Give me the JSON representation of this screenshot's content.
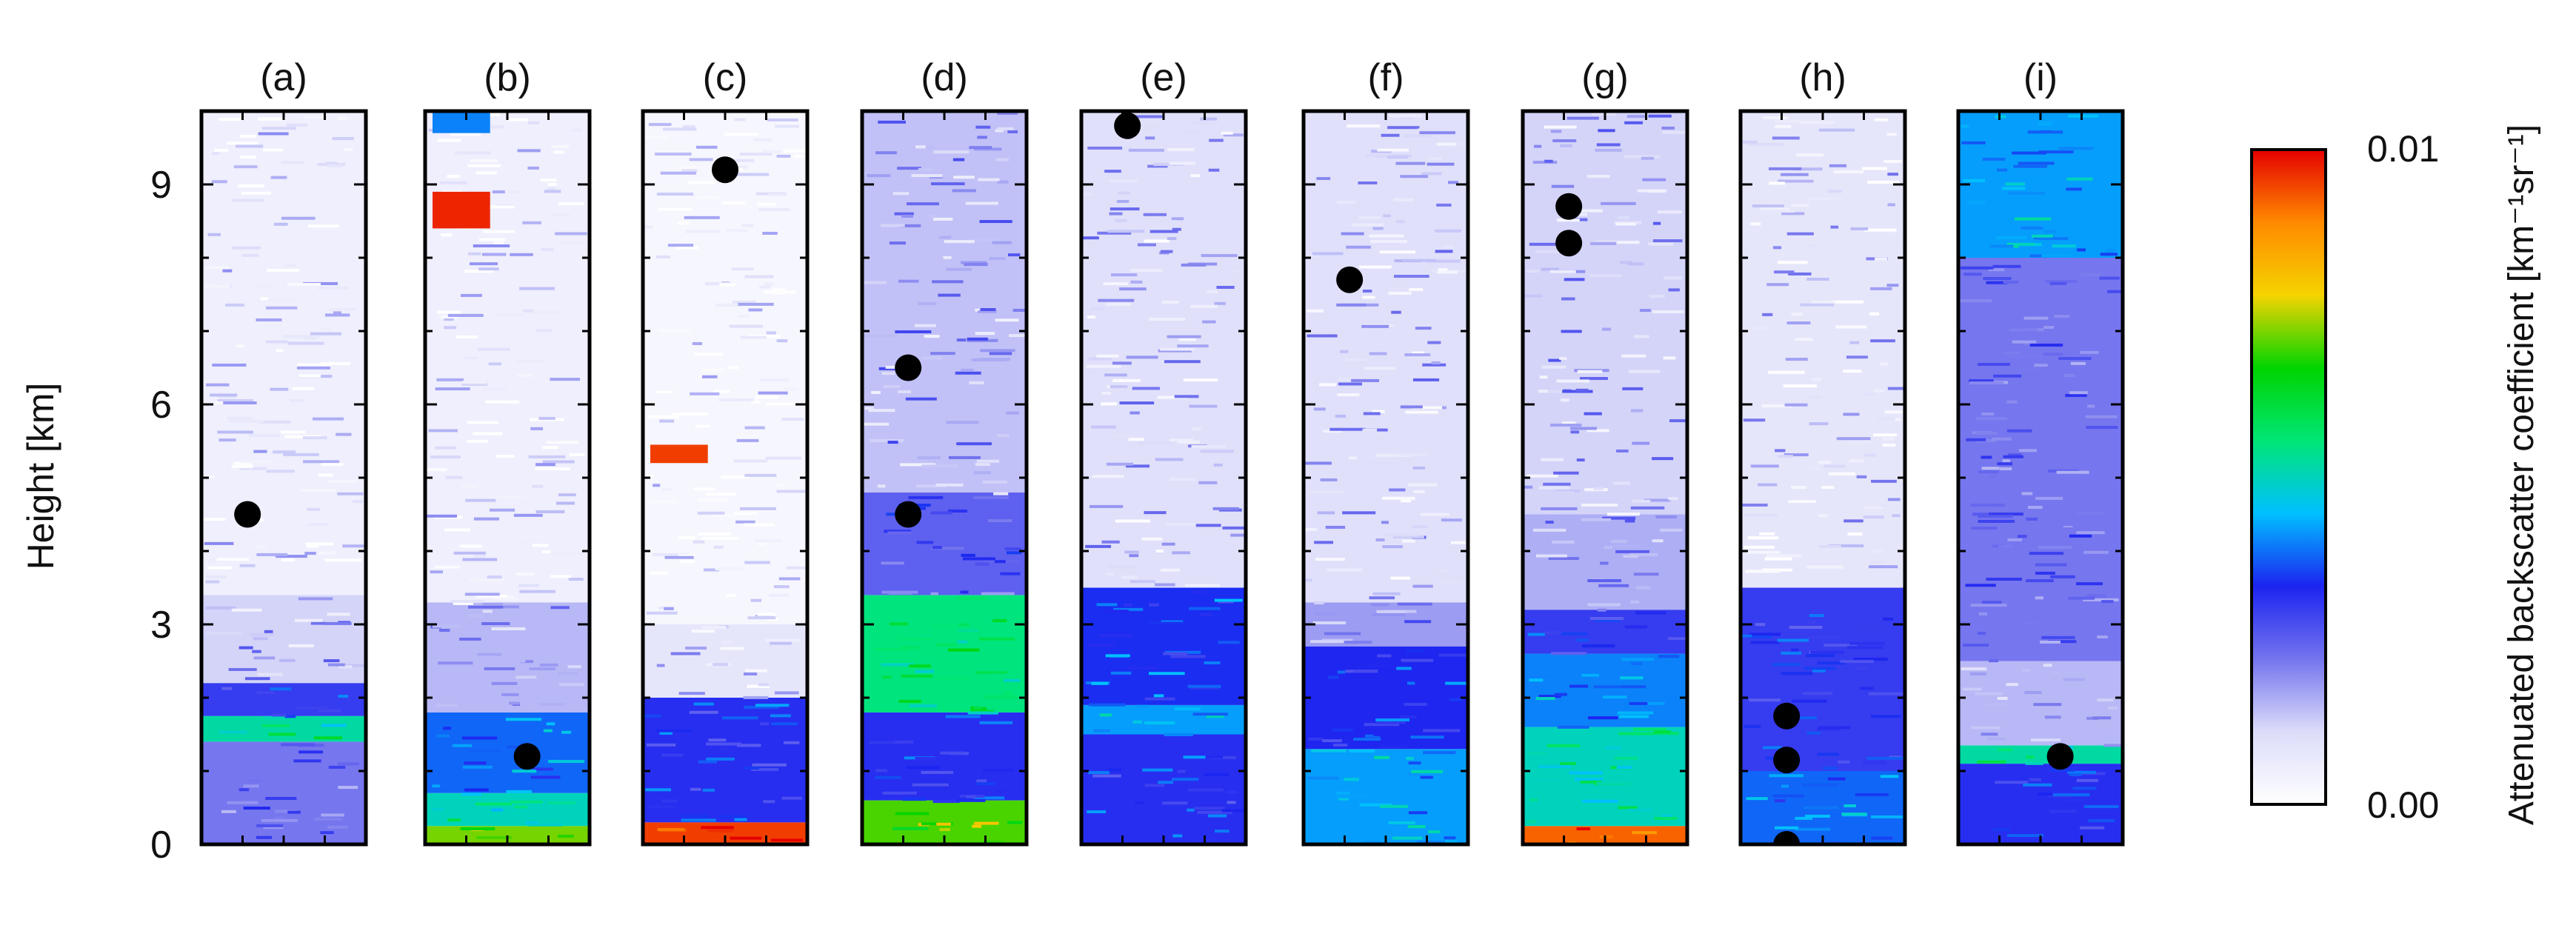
{
  "chart_data": {
    "type": "heatmap",
    "ylabel": "Height [km]",
    "ylim": [
      0,
      10
    ],
    "yticks": [
      "0",
      "3",
      "6",
      "9"
    ],
    "colorbar": {
      "label": "Attenuated backscatter coefficient [km⁻¹sr⁻¹]",
      "min_label": "0.00",
      "max_label": "0.01",
      "range": [
        0.0,
        0.01
      ],
      "colors": [
        "#ffffff",
        "#dcdcfa",
        "#7474ee",
        "#1c24f0",
        "#00c0ff",
        "#00e676",
        "#00d400",
        "#f5d300",
        "#ff8a00",
        "#e50000"
      ]
    },
    "panels": [
      {
        "label": "(a)",
        "markers": [
          4.5
        ],
        "layers": [
          {
            "bottom": 0.0,
            "top": 1.4,
            "level": 0.22
          },
          {
            "bottom": 1.4,
            "top": 1.75,
            "level": 0.52
          },
          {
            "bottom": 1.75,
            "top": 2.2,
            "level": 0.3
          },
          {
            "bottom": 2.2,
            "top": 3.4,
            "level": 0.12
          },
          {
            "bottom": 3.4,
            "top": 10.0,
            "level": 0.05
          }
        ]
      },
      {
        "label": "(b)",
        "markers": [
          1.2
        ],
        "layers": [
          {
            "bottom": 0.0,
            "top": 0.25,
            "level": 0.72
          },
          {
            "bottom": 0.25,
            "top": 0.7,
            "level": 0.5
          },
          {
            "bottom": 0.7,
            "top": 1.8,
            "level": 0.38
          },
          {
            "bottom": 1.8,
            "top": 3.3,
            "level": 0.15
          },
          {
            "bottom": 3.3,
            "top": 10.0,
            "level": 0.05
          }
        ],
        "features": [
          {
            "bottom": 8.4,
            "top": 8.9,
            "level": 0.97
          },
          {
            "bottom": 9.7,
            "top": 10.0,
            "level": 0.4
          }
        ]
      },
      {
        "label": "(c)",
        "markers": [
          9.2
        ],
        "layers": [
          {
            "bottom": 0.0,
            "top": 0.3,
            "level": 0.95
          },
          {
            "bottom": 0.3,
            "top": 2.0,
            "level": 0.32
          },
          {
            "bottom": 2.0,
            "top": 3.0,
            "level": 0.08
          },
          {
            "bottom": 3.0,
            "top": 10.0,
            "level": 0.03
          }
        ],
        "features": [
          {
            "bottom": 5.2,
            "top": 5.45,
            "level": 0.95
          }
        ]
      },
      {
        "label": "(d)",
        "markers": [
          6.5,
          4.5
        ],
        "layers": [
          {
            "bottom": 0.0,
            "top": 0.6,
            "level": 0.7
          },
          {
            "bottom": 0.6,
            "top": 1.8,
            "level": 0.32
          },
          {
            "bottom": 1.8,
            "top": 3.4,
            "level": 0.55
          },
          {
            "bottom": 3.4,
            "top": 4.8,
            "level": 0.25
          },
          {
            "bottom": 4.8,
            "top": 10.0,
            "level": 0.14
          }
        ]
      },
      {
        "label": "(e)",
        "markers": [
          9.8
        ],
        "layers": [
          {
            "bottom": 0.0,
            "top": 1.5,
            "level": 0.32
          },
          {
            "bottom": 1.5,
            "top": 1.9,
            "level": 0.42
          },
          {
            "bottom": 1.9,
            "top": 3.5,
            "level": 0.34
          },
          {
            "bottom": 3.5,
            "top": 10.0,
            "level": 0.1
          }
        ]
      },
      {
        "label": "(f)",
        "markers": [
          7.7
        ],
        "layers": [
          {
            "bottom": 0.0,
            "top": 1.3,
            "level": 0.42
          },
          {
            "bottom": 1.3,
            "top": 2.7,
            "level": 0.33
          },
          {
            "bottom": 2.7,
            "top": 3.3,
            "level": 0.18
          },
          {
            "bottom": 3.3,
            "top": 10.0,
            "level": 0.1
          }
        ]
      },
      {
        "label": "(g)",
        "markers": [
          8.7,
          8.2
        ],
        "layers": [
          {
            "bottom": 0.0,
            "top": 0.25,
            "level": 0.92
          },
          {
            "bottom": 0.25,
            "top": 1.6,
            "level": 0.5
          },
          {
            "bottom": 1.6,
            "top": 2.6,
            "level": 0.4
          },
          {
            "bottom": 2.6,
            "top": 3.2,
            "level": 0.3
          },
          {
            "bottom": 3.2,
            "top": 4.5,
            "level": 0.16
          },
          {
            "bottom": 4.5,
            "top": 10.0,
            "level": 0.12
          }
        ]
      },
      {
        "label": "(h)",
        "markers": [
          1.75,
          1.15,
          0.0
        ],
        "layers": [
          {
            "bottom": 0.0,
            "top": 1.0,
            "level": 0.38
          },
          {
            "bottom": 1.0,
            "top": 3.5,
            "level": 0.3
          },
          {
            "bottom": 3.5,
            "top": 10.0,
            "level": 0.08
          }
        ]
      },
      {
        "label": "(i)",
        "markers": [
          1.2
        ],
        "layers": [
          {
            "bottom": 0.0,
            "top": 1.1,
            "level": 0.32
          },
          {
            "bottom": 1.1,
            "top": 1.35,
            "level": 0.52
          },
          {
            "bottom": 1.35,
            "top": 2.5,
            "level": 0.15
          },
          {
            "bottom": 2.5,
            "top": 8.0,
            "level": 0.22
          },
          {
            "bottom": 8.0,
            "top": 10.0,
            "level": 0.42
          }
        ]
      }
    ]
  }
}
